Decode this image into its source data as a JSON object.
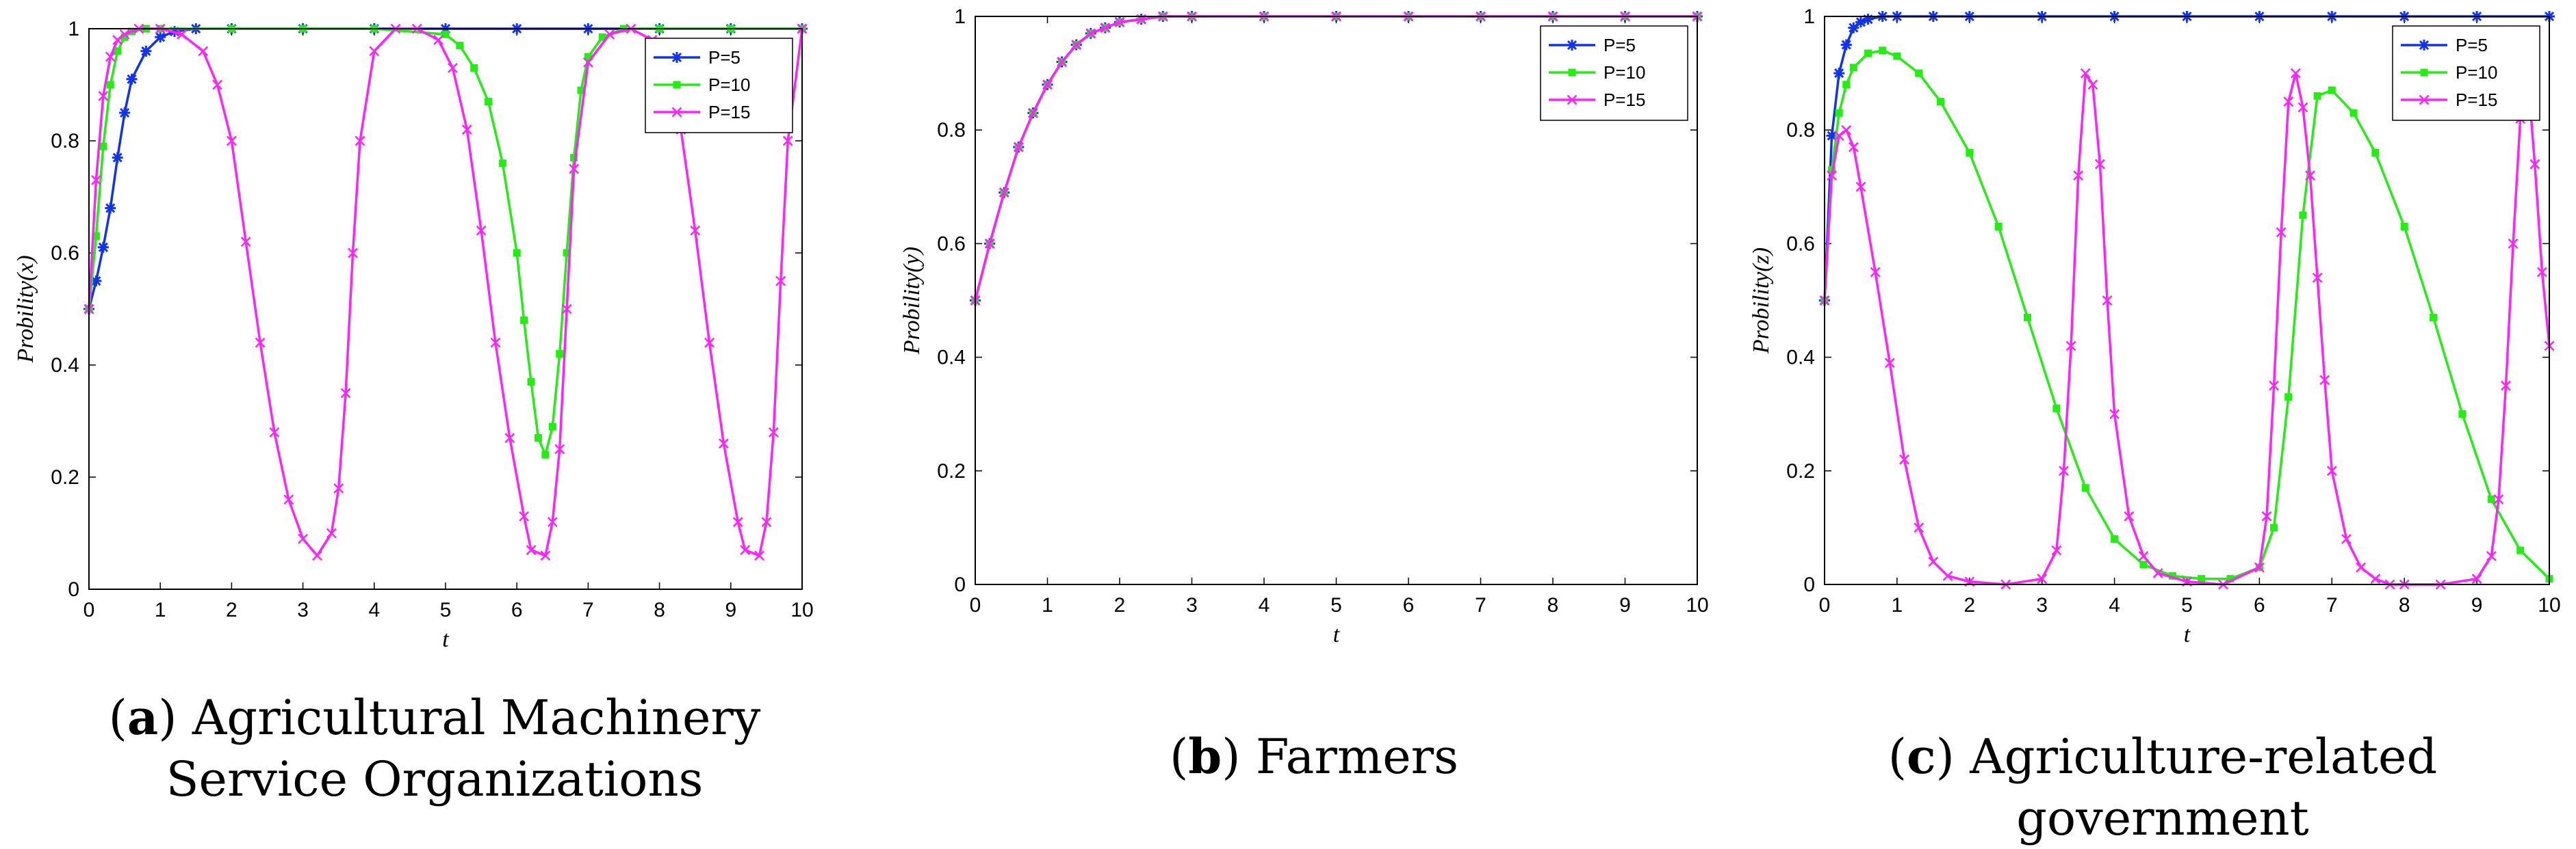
{
  "panels": [
    {
      "letter": "a",
      "caption": "Agricultural Machinery Service Organizations"
    },
    {
      "letter": "b",
      "caption": "Farmers"
    },
    {
      "letter": "c",
      "caption": "Agriculture-related government"
    }
  ],
  "colors": {
    "P=5": "#1133ee",
    "P=10": "#22ee11",
    "P=15": "#ff22ff"
  },
  "chart_data": [
    {
      "type": "line",
      "title": "",
      "xlabel": "t",
      "ylabel": "Probility(x)",
      "xlim": [
        0,
        10
      ],
      "ylim": [
        0,
        1
      ],
      "xticks": [
        0,
        1,
        2,
        3,
        4,
        5,
        6,
        7,
        8,
        9,
        10
      ],
      "yticks": [
        0,
        0.2,
        0.4,
        0.6,
        0.8,
        1
      ],
      "legend_position": "top-right",
      "series": [
        {
          "name": "P=5",
          "marker": "star",
          "x": [
            0,
            0.1,
            0.2,
            0.3,
            0.4,
            0.5,
            0.6,
            0.8,
            1.0,
            1.2,
            1.5,
            2,
            3,
            4,
            5,
            6,
            7,
            8,
            9,
            10
          ],
          "y": [
            0.5,
            0.55,
            0.61,
            0.68,
            0.77,
            0.85,
            0.91,
            0.96,
            0.985,
            0.995,
            1,
            1,
            1,
            1,
            1,
            1,
            1,
            1,
            1,
            1
          ]
        },
        {
          "name": "P=10",
          "marker": "square",
          "x": [
            0,
            0.1,
            0.2,
            0.3,
            0.4,
            0.5,
            0.6,
            0.8,
            1.0,
            2,
            3,
            4,
            5,
            5.2,
            5.4,
            5.6,
            5.8,
            6.0,
            6.1,
            6.2,
            6.3,
            6.4,
            6.5,
            6.6,
            6.7,
            6.8,
            6.9,
            7.0,
            7.2,
            7.5,
            8,
            9,
            10
          ],
          "y": [
            0.5,
            0.63,
            0.79,
            0.9,
            0.96,
            0.985,
            0.995,
            1,
            1,
            1,
            1,
            1,
            0.99,
            0.97,
            0.93,
            0.87,
            0.76,
            0.6,
            0.48,
            0.37,
            0.27,
            0.24,
            0.29,
            0.42,
            0.6,
            0.77,
            0.89,
            0.95,
            0.985,
            1,
            1,
            1,
            1
          ]
        },
        {
          "name": "P=15",
          "marker": "x",
          "x": [
            0,
            0.1,
            0.2,
            0.3,
            0.4,
            0.5,
            0.7,
            1.0,
            1.3,
            1.6,
            1.8,
            2.0,
            2.2,
            2.4,
            2.6,
            2.8,
            3.0,
            3.2,
            3.4,
            3.5,
            3.6,
            3.7,
            3.8,
            4.0,
            4.3,
            4.6,
            4.9,
            5.1,
            5.3,
            5.5,
            5.7,
            5.9,
            6.1,
            6.2,
            6.4,
            6.5,
            6.6,
            6.7,
            6.8,
            7.0,
            7.3,
            7.6,
            7.9,
            8.1,
            8.3,
            8.5,
            8.7,
            8.9,
            9.1,
            9.2,
            9.4,
            9.5,
            9.6,
            9.7,
            9.8,
            10.0
          ],
          "y": [
            0.5,
            0.73,
            0.88,
            0.95,
            0.98,
            0.99,
            1,
            1,
            0.99,
            0.96,
            0.9,
            0.8,
            0.62,
            0.44,
            0.28,
            0.16,
            0.09,
            0.06,
            0.1,
            0.18,
            0.35,
            0.6,
            0.8,
            0.96,
            1,
            1,
            0.98,
            0.93,
            0.82,
            0.64,
            0.44,
            0.27,
            0.13,
            0.07,
            0.06,
            0.12,
            0.25,
            0.5,
            0.75,
            0.94,
            0.99,
            1,
            0.98,
            0.93,
            0.82,
            0.64,
            0.44,
            0.26,
            0.12,
            0.07,
            0.06,
            0.12,
            0.28,
            0.55,
            0.8,
            1
          ]
        }
      ]
    },
    {
      "type": "line",
      "title": "",
      "xlabel": "t",
      "ylabel": "Probility(y)",
      "xlim": [
        0,
        10
      ],
      "ylim": [
        0,
        1
      ],
      "xticks": [
        0,
        1,
        2,
        3,
        4,
        5,
        6,
        7,
        8,
        9,
        10
      ],
      "yticks": [
        0,
        0.2,
        0.4,
        0.6,
        0.8,
        1
      ],
      "legend_position": "top-right",
      "series": [
        {
          "name": "P=5",
          "marker": "star",
          "x": [
            0,
            0.2,
            0.4,
            0.6,
            0.8,
            1.0,
            1.2,
            1.4,
            1.6,
            1.8,
            2.0,
            2.3,
            2.6,
            3,
            4,
            5,
            6,
            7,
            8,
            9,
            10
          ],
          "y": [
            0.5,
            0.6,
            0.69,
            0.77,
            0.83,
            0.88,
            0.92,
            0.95,
            0.97,
            0.98,
            0.99,
            0.995,
            1,
            1,
            1,
            1,
            1,
            1,
            1,
            1,
            1
          ]
        },
        {
          "name": "P=10",
          "marker": "square",
          "x": [
            0,
            0.2,
            0.4,
            0.6,
            0.8,
            1.0,
            1.2,
            1.4,
            1.6,
            1.8,
            2.0,
            2.3,
            2.6,
            3,
            4,
            5,
            6,
            7,
            8,
            9,
            10
          ],
          "y": [
            0.5,
            0.6,
            0.69,
            0.77,
            0.83,
            0.88,
            0.92,
            0.95,
            0.97,
            0.98,
            0.99,
            0.995,
            1,
            1,
            1,
            1,
            1,
            1,
            1,
            1,
            1
          ]
        },
        {
          "name": "P=15",
          "marker": "x",
          "x": [
            0,
            0.2,
            0.4,
            0.6,
            0.8,
            1.0,
            1.2,
            1.4,
            1.6,
            1.8,
            2.0,
            2.3,
            2.6,
            3,
            4,
            5,
            6,
            7,
            8,
            9,
            10
          ],
          "y": [
            0.5,
            0.6,
            0.69,
            0.77,
            0.83,
            0.88,
            0.92,
            0.95,
            0.97,
            0.98,
            0.99,
            0.995,
            1,
            1,
            1,
            1,
            1,
            1,
            1,
            1,
            1
          ]
        }
      ]
    },
    {
      "type": "line",
      "title": "",
      "xlabel": "t",
      "ylabel": "Probility(z)",
      "xlim": [
        0,
        10
      ],
      "ylim": [
        0,
        1
      ],
      "xticks": [
        0,
        1,
        2,
        3,
        4,
        5,
        6,
        7,
        8,
        9,
        10
      ],
      "yticks": [
        0,
        0.2,
        0.4,
        0.6,
        0.8,
        1
      ],
      "legend_position": "top-right",
      "series": [
        {
          "name": "P=5",
          "marker": "star",
          "x": [
            0,
            0.1,
            0.2,
            0.3,
            0.4,
            0.5,
            0.6,
            0.8,
            1.0,
            1.5,
            2,
            3,
            4,
            5,
            6,
            7,
            8,
            9,
            10
          ],
          "y": [
            0.5,
            0.79,
            0.9,
            0.95,
            0.98,
            0.99,
            0.995,
            1,
            1,
            1,
            1,
            1,
            1,
            1,
            1,
            1,
            1,
            1,
            1
          ]
        },
        {
          "name": "P=10",
          "marker": "square",
          "x": [
            0,
            0.1,
            0.2,
            0.3,
            0.4,
            0.6,
            0.8,
            1.0,
            1.3,
            1.6,
            2.0,
            2.4,
            2.8,
            3.2,
            3.6,
            4.0,
            4.4,
            4.8,
            5.2,
            5.6,
            6.0,
            6.2,
            6.4,
            6.6,
            6.8,
            7.0,
            7.3,
            7.6,
            8.0,
            8.4,
            8.8,
            9.2,
            9.6,
            10.0
          ],
          "y": [
            0.5,
            0.73,
            0.83,
            0.88,
            0.91,
            0.935,
            0.94,
            0.93,
            0.9,
            0.85,
            0.76,
            0.63,
            0.47,
            0.31,
            0.17,
            0.08,
            0.035,
            0.015,
            0.01,
            0.01,
            0.03,
            0.1,
            0.33,
            0.65,
            0.86,
            0.87,
            0.83,
            0.76,
            0.63,
            0.47,
            0.3,
            0.15,
            0.06,
            0.01
          ]
        },
        {
          "name": "P=15",
          "marker": "x",
          "x": [
            0,
            0.1,
            0.2,
            0.3,
            0.4,
            0.5,
            0.7,
            0.9,
            1.1,
            1.3,
            1.5,
            1.7,
            2.0,
            2.5,
            3.0,
            3.2,
            3.3,
            3.4,
            3.5,
            3.6,
            3.7,
            3.8,
            3.9,
            4.0,
            4.2,
            4.4,
            4.6,
            5.0,
            5.5,
            6.0,
            6.1,
            6.2,
            6.3,
            6.4,
            6.5,
            6.6,
            6.7,
            6.8,
            6.9,
            7.0,
            7.2,
            7.4,
            7.6,
            7.8,
            8.0,
            8.5,
            9.0,
            9.2,
            9.3,
            9.4,
            9.5,
            9.6,
            9.7,
            9.8,
            9.9,
            10.0
          ],
          "y": [
            0.5,
            0.72,
            0.79,
            0.8,
            0.77,
            0.7,
            0.55,
            0.39,
            0.22,
            0.1,
            0.04,
            0.015,
            0.005,
            0,
            0.01,
            0.06,
            0.2,
            0.42,
            0.72,
            0.9,
            0.88,
            0.74,
            0.5,
            0.3,
            0.12,
            0.05,
            0.02,
            0.005,
            0,
            0.03,
            0.12,
            0.35,
            0.62,
            0.85,
            0.9,
            0.84,
            0.72,
            0.54,
            0.36,
            0.2,
            0.08,
            0.03,
            0.01,
            0,
            0,
            0,
            0.01,
            0.05,
            0.15,
            0.35,
            0.6,
            0.82,
            0.9,
            0.74,
            0.55,
            0.42
          ]
        }
      ]
    }
  ]
}
